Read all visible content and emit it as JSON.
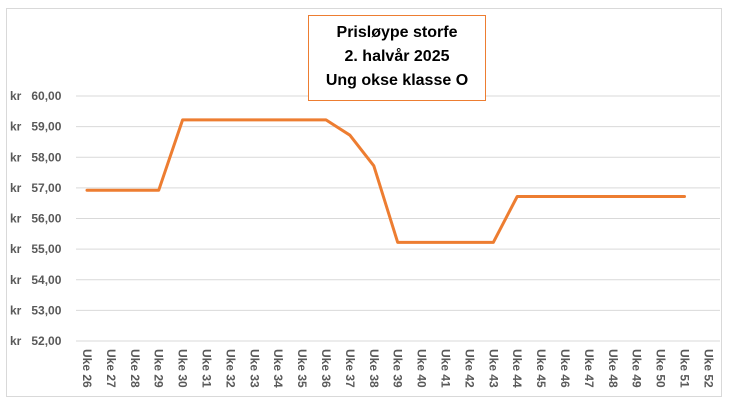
{
  "chart_data": {
    "type": "line",
    "title_lines": [
      "Prisløype storfe",
      "2. halvår 2025",
      "Ung okse klasse O"
    ],
    "categories": [
      "Uke 26",
      "Uke 27",
      "Uke 28",
      "Uke 29",
      "Uke 30",
      "Uke 31",
      "Uke 32",
      "Uke 33",
      "Uke 34",
      "Uke 35",
      "Uke 36",
      "Uke 37",
      "Uke 38",
      "Uke 39",
      "Uke 40",
      "Uke 41",
      "Uke 42",
      "Uke 43",
      "Uke 44",
      "Uke 45",
      "Uke 46",
      "Uke 47",
      "Uke 48",
      "Uke 49",
      "Uke 50",
      "Uke 51",
      "Uke 52"
    ],
    "series": [
      {
        "color": "#ed7d31",
        "values": [
          56.92,
          56.92,
          56.92,
          56.92,
          59.22,
          59.22,
          59.22,
          59.22,
          59.22,
          59.22,
          59.22,
          58.72,
          57.72,
          55.22,
          55.22,
          55.22,
          55.22,
          55.22,
          56.72,
          56.72,
          56.72,
          56.72,
          56.72,
          56.72,
          56.72,
          56.72,
          null
        ]
      }
    ],
    "y_ticks": [
      "kr 52,00",
      "kr 53,00",
      "kr 54,00",
      "kr 55,00",
      "kr 56,00",
      "kr 57,00",
      "kr 58,00",
      "kr 59,00",
      "kr 60,00"
    ],
    "ylim": [
      52,
      60
    ],
    "grid": true,
    "legend": "none",
    "gridline_color": "#d9d9d9"
  }
}
